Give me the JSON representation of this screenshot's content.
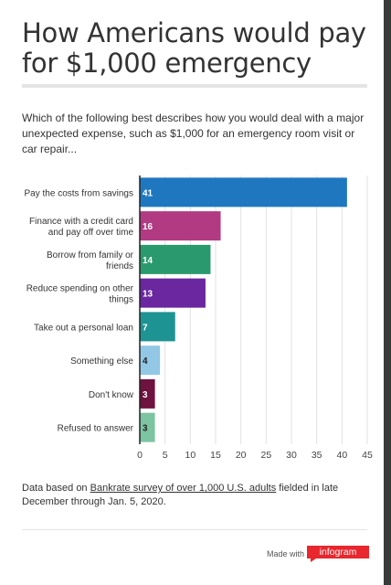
{
  "header": {
    "title": "How Americans would pay for $1,000 emergency",
    "question": "Which of the following best describes how you would deal with a major unexpected expense, such as $1,000 for an emergency room visit or car repair..."
  },
  "chart_data": {
    "type": "bar",
    "orientation": "horizontal",
    "categories": [
      [
        "Pay the costs from savings"
      ],
      [
        "Finance with a credit card",
        "and pay off over time"
      ],
      [
        "Borrow from family or",
        "friends"
      ],
      [
        "Reduce spending on other",
        "things"
      ],
      [
        "Take out a personal loan"
      ],
      [
        "Something else"
      ],
      [
        "Don't know"
      ],
      [
        "Refused to answer"
      ]
    ],
    "values": [
      41,
      16,
      14,
      13,
      7,
      4,
      3,
      3
    ],
    "colors": [
      "#1f77c0",
      "#b23a82",
      "#2a9a6e",
      "#6a27a0",
      "#1e9394",
      "#92c8e6",
      "#6e1240",
      "#7cc4a2"
    ],
    "value_label_colors": [
      "#ffffff",
      "#ffffff",
      "#ffffff",
      "#ffffff",
      "#ffffff",
      "#222222",
      "#ffffff",
      "#222222"
    ],
    "xticks": [
      0,
      5,
      10,
      15,
      20,
      25,
      30,
      35,
      40,
      45
    ],
    "xlim": [
      0,
      45
    ],
    "grid": true
  },
  "footnote": {
    "prefix": "Data based on ",
    "link_text": "Bankrate survey of over 1,000 U.S. adults",
    "suffix": " fielded in late December through Jan. 5, 2020."
  },
  "footer": {
    "made_with": "Made with",
    "brand": "infogram",
    "brand_color": "#e8272e"
  }
}
